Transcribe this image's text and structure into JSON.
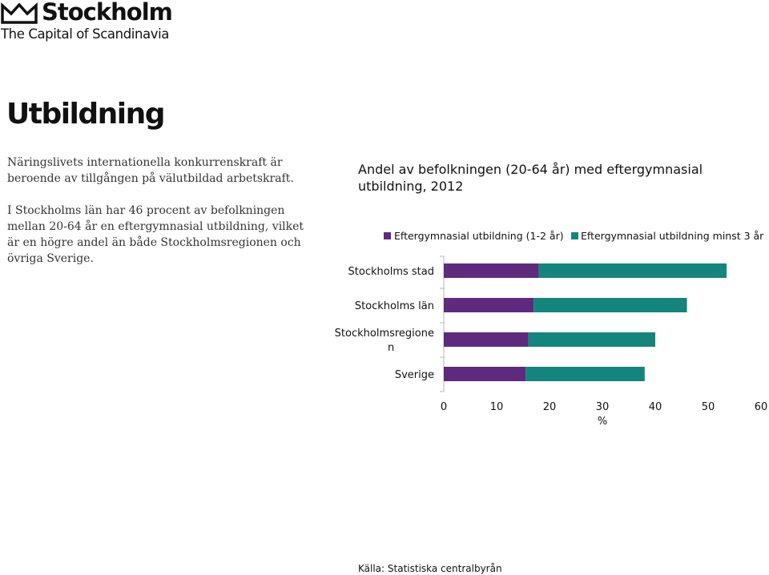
{
  "brand": {
    "name": "Stockholm",
    "tagline": "The Capital of Scandinavia"
  },
  "heading": "Utbildning",
  "paragraphs": [
    "Näringslivets internationella konkurrenskraft är beroende av tillgången på välutbildad arbetskraft.",
    "I Stockholms län har 46 procent av befolkningen mellan 20-64 år en eftergymnasial utbildning, vilket är en högre andel än både Stockholmsregionen och övriga Sverige."
  ],
  "chart_data": {
    "type": "bar",
    "orientation": "horizontal",
    "stacked": true,
    "title": "Andel av befolkningen (20-64 år) med eftergymnasial utbildning, 2012",
    "categories": [
      "Stockholms stad",
      "Stockholms län",
      "Stockholmsregionen",
      "Sverige"
    ],
    "series": [
      {
        "name": "Eftergymnasial utbildning (1-2 år)",
        "color": "#5e2a7e",
        "values": [
          18,
          17,
          16,
          15.5
        ]
      },
      {
        "name": "Eftergymnasial utbildning minst 3 år",
        "color": "#13857d",
        "values": [
          35.5,
          29,
          24,
          22.5
        ]
      }
    ],
    "xlabel": "%",
    "xlim": [
      0,
      60
    ],
    "xticks": [
      0,
      10,
      20,
      30,
      40,
      50,
      60
    ],
    "grid": false,
    "legend_position": "top",
    "source": "Källa: Statistiska centralbyrån"
  }
}
